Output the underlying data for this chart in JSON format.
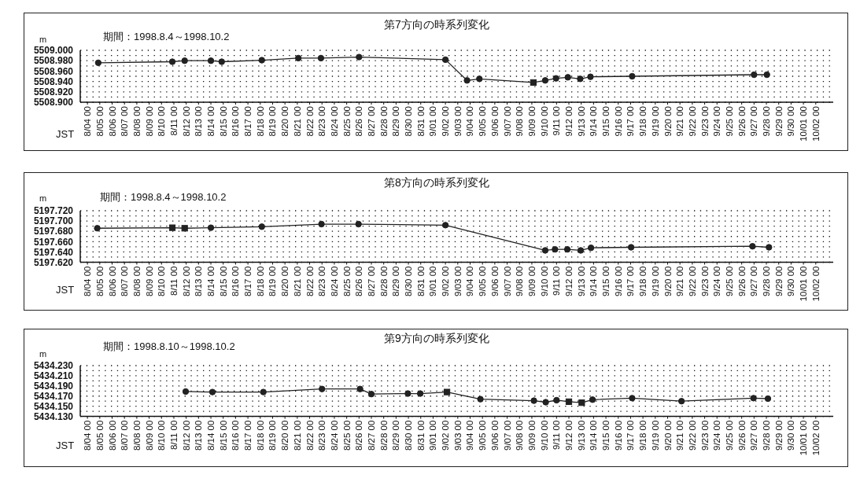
{
  "chart_data": [
    {
      "type": "line",
      "title": "第7方向の時系列変化",
      "subtitle": "期間：1998.8.4～1998.10.2",
      "xlabel": "JST",
      "ylabel": "m",
      "xlim": [
        "1998-08-03T10:00",
        "1998-10-03T10:00"
      ],
      "xticks": [
        {
          "value": "1998-08-04",
          "label": "8/04 00"
        },
        {
          "value": "1998-08-05",
          "label": "8/05 00"
        },
        {
          "value": "1998-08-06",
          "label": "8/06 00"
        },
        {
          "value": "1998-08-07",
          "label": "8/07 00"
        },
        {
          "value": "1998-08-08",
          "label": "8/08 00"
        },
        {
          "value": "1998-08-09",
          "label": "8/09 00"
        },
        {
          "value": "1998-08-10",
          "label": "8/10 00"
        },
        {
          "value": "1998-08-11",
          "label": "8/11 00"
        },
        {
          "value": "1998-08-12",
          "label": "8/12 00"
        },
        {
          "value": "1998-08-13",
          "label": "8/13 00"
        },
        {
          "value": "1998-08-14",
          "label": "8/14 00"
        },
        {
          "value": "1998-08-15",
          "label": "8/15 00"
        },
        {
          "value": "1998-08-16",
          "label": "8/16 00"
        },
        {
          "value": "1998-08-17",
          "label": "8/17 00"
        },
        {
          "value": "1998-08-18",
          "label": "8/18 00"
        },
        {
          "value": "1998-08-19",
          "label": "8/19 00"
        },
        {
          "value": "1998-08-20",
          "label": "8/20 00"
        },
        {
          "value": "1998-08-21",
          "label": "8/21 00"
        },
        {
          "value": "1998-08-22",
          "label": "8/22 00"
        },
        {
          "value": "1998-08-23",
          "label": "8/23 00"
        },
        {
          "value": "1998-08-24",
          "label": "8/24 00"
        },
        {
          "value": "1998-08-25",
          "label": "8/25 00"
        },
        {
          "value": "1998-08-26",
          "label": "8/26 00"
        },
        {
          "value": "1998-08-27",
          "label": "8/27 00"
        },
        {
          "value": "1998-08-28",
          "label": "8/28 00"
        },
        {
          "value": "1998-08-29",
          "label": "8/29 00"
        },
        {
          "value": "1998-08-30",
          "label": "8/30 00"
        },
        {
          "value": "1998-08-31",
          "label": "8/31 00"
        },
        {
          "value": "1998-09-01",
          "label": "9/01 00"
        },
        {
          "value": "1998-09-02",
          "label": "9/02 00"
        },
        {
          "value": "1998-09-03",
          "label": "9/03 00"
        },
        {
          "value": "1998-09-04",
          "label": "9/04 00"
        },
        {
          "value": "1998-09-05",
          "label": "9/05 00"
        },
        {
          "value": "1998-09-06",
          "label": "9/06 00"
        },
        {
          "value": "1998-09-07",
          "label": "9/07 00"
        },
        {
          "value": "1998-09-08",
          "label": "9/08 00"
        },
        {
          "value": "1998-09-09",
          "label": "9/09 00"
        },
        {
          "value": "1998-09-10",
          "label": "9/10 00"
        },
        {
          "value": "1998-09-11",
          "label": "9/11 00"
        },
        {
          "value": "1998-09-12",
          "label": "9/12 00"
        },
        {
          "value": "1998-09-13",
          "label": "9/13 00"
        },
        {
          "value": "1998-09-14",
          "label": "9/14 00"
        },
        {
          "value": "1998-09-15",
          "label": "9/15 00"
        },
        {
          "value": "1998-09-16",
          "label": "9/16 00"
        },
        {
          "value": "1998-09-17",
          "label": "9/17 00"
        },
        {
          "value": "1998-09-18",
          "label": "9/18 00"
        },
        {
          "value": "1998-09-19",
          "label": "9/19 00"
        },
        {
          "value": "1998-09-20",
          "label": "9/20 00"
        },
        {
          "value": "1998-09-21",
          "label": "9/21 00"
        },
        {
          "value": "1998-09-22",
          "label": "9/22 00"
        },
        {
          "value": "1998-09-23",
          "label": "9/23 00"
        },
        {
          "value": "1998-09-24",
          "label": "9/24 00"
        },
        {
          "value": "1998-09-25",
          "label": "9/25 00"
        },
        {
          "value": "1998-09-26",
          "label": "9/26 00"
        },
        {
          "value": "1998-09-27",
          "label": "9/27 00"
        },
        {
          "value": "1998-09-28",
          "label": "9/28 00"
        },
        {
          "value": "1998-09-29",
          "label": "9/29 00"
        },
        {
          "value": "1998-09-30",
          "label": "9/30 00"
        },
        {
          "value": "1998-10-01",
          "label": "10/01 00"
        },
        {
          "value": "1998-10-02",
          "label": "10/02 00"
        }
      ],
      "ylim": [
        5508.9,
        5509.0
      ],
      "yticks": [
        {
          "value": 5508.9,
          "label": "5508.900"
        },
        {
          "value": 5508.91,
          "label": null
        },
        {
          "value": 5508.92,
          "label": "5508.920"
        },
        {
          "value": 5508.93,
          "label": null
        },
        {
          "value": 5508.94,
          "label": "5508.940"
        },
        {
          "value": 5508.95,
          "label": null
        },
        {
          "value": 5508.96,
          "label": "5508.960"
        },
        {
          "value": 5508.97,
          "label": null
        },
        {
          "value": 5508.98,
          "label": "5508.980"
        },
        {
          "value": 5508.99,
          "label": null
        },
        {
          "value": 5509.0,
          "label": "5509.000"
        }
      ],
      "grid": "y",
      "series": [
        {
          "type": "line",
          "color": "#222222",
          "marker": "none",
          "x": [
            "1998-08-04T21:00",
            "1998-08-10T21:00",
            "1998-08-11T21:00",
            "1998-08-14T00:00",
            "1998-08-14T21:00",
            "1998-08-18T03:00",
            "1998-08-21T02:00",
            "1998-08-22T22:00",
            "1998-08-26T00:00",
            "1998-09-02T00:00",
            "1998-09-03T18:00",
            "1998-09-04T18:00",
            "1998-09-09T03:00",
            "1998-09-10T02:00",
            "1998-09-10T23:00",
            "1998-09-11T22:00",
            "1998-09-12T22:00",
            "1998-09-13T18:00",
            "1998-09-17T03:00",
            "1998-09-27T00:00",
            "1998-09-28T01:00"
          ],
          "values": [
            5508.976,
            5508.978,
            5508.98,
            5508.98,
            5508.978,
            5508.981,
            5508.985,
            5508.985,
            5508.987,
            5508.982,
            5508.942,
            5508.945,
            5508.938,
            5508.942,
            5508.946,
            5508.948,
            5508.945,
            5508.949,
            5508.95,
            5508.953,
            5508.953
          ]
        },
        {
          "type": "scatter",
          "color": "#222222",
          "marker": "circle",
          "x": [
            "1998-08-04T21:00",
            "1998-08-10T21:00",
            "1998-08-11T21:00",
            "1998-08-14T00:00",
            "1998-08-14T21:00",
            "1998-08-18T03:00",
            "1998-08-21T02:00",
            "1998-08-22T22:00",
            "1998-08-26T00:00",
            "1998-09-02T00:00",
            "1998-09-03T18:00",
            "1998-09-04T18:00",
            "1998-09-10T02:00",
            "1998-09-10T23:00",
            "1998-09-11T22:00",
            "1998-09-12T22:00",
            "1998-09-13T18:00",
            "1998-09-17T03:00",
            "1998-09-27T00:00",
            "1998-09-28T01:00"
          ],
          "values": [
            5508.976,
            5508.978,
            5508.98,
            5508.98,
            5508.978,
            5508.981,
            5508.985,
            5508.985,
            5508.987,
            5508.982,
            5508.942,
            5508.945,
            5508.942,
            5508.946,
            5508.948,
            5508.945,
            5508.949,
            5508.95,
            5508.953,
            5508.953
          ]
        },
        {
          "type": "scatter",
          "color": "#222222",
          "marker": "square",
          "x": [
            "1998-09-09T03:00"
          ],
          "values": [
            5508.938
          ]
        }
      ]
    },
    {
      "type": "line",
      "title": "第8方向の時系列変化",
      "subtitle": "期間：1998.8.4～1998.10.2",
      "xlabel": "JST",
      "ylabel": "m",
      "xlim": [
        "1998-08-03T10:00",
        "1998-10-03T10:00"
      ],
      "xticks": [
        {
          "value": "1998-08-04",
          "label": "8/04 00"
        },
        {
          "value": "1998-08-05",
          "label": "8/05 00"
        },
        {
          "value": "1998-08-06",
          "label": "8/06 00"
        },
        {
          "value": "1998-08-07",
          "label": "8/07 00"
        },
        {
          "value": "1998-08-08",
          "label": "8/08 00"
        },
        {
          "value": "1998-08-09",
          "label": "8/09 00"
        },
        {
          "value": "1998-08-10",
          "label": "8/10 00"
        },
        {
          "value": "1998-08-11",
          "label": "8/11 00"
        },
        {
          "value": "1998-08-12",
          "label": "8/12 00"
        },
        {
          "value": "1998-08-13",
          "label": "8/13 00"
        },
        {
          "value": "1998-08-14",
          "label": "8/14 00"
        },
        {
          "value": "1998-08-15",
          "label": "8/15 00"
        },
        {
          "value": "1998-08-16",
          "label": "8/16 00"
        },
        {
          "value": "1998-08-17",
          "label": "8/17 00"
        },
        {
          "value": "1998-08-18",
          "label": "8/18 00"
        },
        {
          "value": "1998-08-19",
          "label": "8/19 00"
        },
        {
          "value": "1998-08-20",
          "label": "8/20 00"
        },
        {
          "value": "1998-08-21",
          "label": "8/21 00"
        },
        {
          "value": "1998-08-22",
          "label": "8/22 00"
        },
        {
          "value": "1998-08-23",
          "label": "8/23 00"
        },
        {
          "value": "1998-08-24",
          "label": "8/24 00"
        },
        {
          "value": "1998-08-25",
          "label": "8/25 00"
        },
        {
          "value": "1998-08-26",
          "label": "8/26 00"
        },
        {
          "value": "1998-08-27",
          "label": "8/27 00"
        },
        {
          "value": "1998-08-28",
          "label": "8/28 00"
        },
        {
          "value": "1998-08-29",
          "label": "8/29 00"
        },
        {
          "value": "1998-08-30",
          "label": "8/30 00"
        },
        {
          "value": "1998-08-31",
          "label": "8/31 00"
        },
        {
          "value": "1998-09-01",
          "label": "9/01 00"
        },
        {
          "value": "1998-09-02",
          "label": "9/02 00"
        },
        {
          "value": "1998-09-03",
          "label": "9/03 00"
        },
        {
          "value": "1998-09-04",
          "label": "9/04 00"
        },
        {
          "value": "1998-09-05",
          "label": "9/05 00"
        },
        {
          "value": "1998-09-06",
          "label": "9/06 00"
        },
        {
          "value": "1998-09-07",
          "label": "9/07 00"
        },
        {
          "value": "1998-09-08",
          "label": "9/08 00"
        },
        {
          "value": "1998-09-09",
          "label": "9/09 00"
        },
        {
          "value": "1998-09-10",
          "label": "9/10 00"
        },
        {
          "value": "1998-09-11",
          "label": "9/11 00"
        },
        {
          "value": "1998-09-12",
          "label": "9/12 00"
        },
        {
          "value": "1998-09-13",
          "label": "9/13 00"
        },
        {
          "value": "1998-09-14",
          "label": "9/14 00"
        },
        {
          "value": "1998-09-15",
          "label": "9/15 00"
        },
        {
          "value": "1998-09-16",
          "label": "9/16 00"
        },
        {
          "value": "1998-09-17",
          "label": "9/17 00"
        },
        {
          "value": "1998-09-18",
          "label": "9/18 00"
        },
        {
          "value": "1998-09-19",
          "label": "9/19 00"
        },
        {
          "value": "1998-09-20",
          "label": "9/20 00"
        },
        {
          "value": "1998-09-21",
          "label": "9/21 00"
        },
        {
          "value": "1998-09-22",
          "label": "9/22 00"
        },
        {
          "value": "1998-09-23",
          "label": "9/23 00"
        },
        {
          "value": "1998-09-24",
          "label": "9/24 00"
        },
        {
          "value": "1998-09-25",
          "label": "9/25 00"
        },
        {
          "value": "1998-09-26",
          "label": "9/26 00"
        },
        {
          "value": "1998-09-27",
          "label": "9/27 00"
        },
        {
          "value": "1998-09-28",
          "label": "9/28 00"
        },
        {
          "value": "1998-09-29",
          "label": "9/29 00"
        },
        {
          "value": "1998-09-30",
          "label": "9/30 00"
        },
        {
          "value": "1998-10-01",
          "label": "10/01 00"
        },
        {
          "value": "1998-10-02",
          "label": "10/02 00"
        }
      ],
      "ylim": [
        5197.62,
        5197.72
      ],
      "yticks": [
        {
          "value": 5197.62,
          "label": "5197.620"
        },
        {
          "value": 5197.63,
          "label": null
        },
        {
          "value": 5197.64,
          "label": "5197.640"
        },
        {
          "value": 5197.65,
          "label": null
        },
        {
          "value": 5197.66,
          "label": "5197.660"
        },
        {
          "value": 5197.67,
          "label": null
        },
        {
          "value": 5197.68,
          "label": "5197.680"
        },
        {
          "value": 5197.69,
          "label": null
        },
        {
          "value": 5197.7,
          "label": "5197.700"
        },
        {
          "value": 5197.71,
          "label": null
        },
        {
          "value": 5197.72,
          "label": "5197.720"
        }
      ],
      "grid": "y",
      "series": [
        {
          "type": "line",
          "color": "#222222",
          "marker": "none",
          "x": [
            "1998-08-04T19:00",
            "1998-08-10T21:00",
            "1998-08-11T21:00",
            "1998-08-14T00:00",
            "1998-08-18T03:00",
            "1998-08-22T23:00",
            "1998-08-25T23:00",
            "1998-09-02T00:00",
            "1998-09-10T02:00",
            "1998-09-10T21:00",
            "1998-09-11T21:00",
            "1998-09-12T23:00",
            "1998-09-13T19:00",
            "1998-09-17T01:00",
            "1998-09-26T21:00",
            "1998-09-28T05:00"
          ],
          "values": [
            5197.686,
            5197.687,
            5197.686,
            5197.687,
            5197.689,
            5197.694,
            5197.694,
            5197.692,
            5197.643,
            5197.645,
            5197.645,
            5197.643,
            5197.648,
            5197.649,
            5197.651,
            5197.649
          ]
        },
        {
          "type": "scatter",
          "color": "#222222",
          "marker": "circle",
          "x": [
            "1998-08-04T19:00",
            "1998-08-14T00:00",
            "1998-08-18T03:00",
            "1998-08-22T23:00",
            "1998-08-25T23:00",
            "1998-09-02T00:00",
            "1998-09-10T02:00",
            "1998-09-10T21:00",
            "1998-09-11T21:00",
            "1998-09-12T23:00",
            "1998-09-13T19:00",
            "1998-09-17T01:00",
            "1998-09-26T21:00",
            "1998-09-28T05:00"
          ],
          "values": [
            5197.686,
            5197.687,
            5197.689,
            5197.694,
            5197.694,
            5197.692,
            5197.643,
            5197.645,
            5197.645,
            5197.643,
            5197.648,
            5197.649,
            5197.651,
            5197.649
          ]
        },
        {
          "type": "scatter",
          "color": "#222222",
          "marker": "square",
          "x": [
            "1998-08-10T21:00",
            "1998-08-11T21:00"
          ],
          "values": [
            5197.687,
            5197.686
          ]
        }
      ]
    },
    {
      "type": "line",
      "title": "第9方向の時系列変化",
      "subtitle": "期間：1998.8.10～1998.10.2",
      "xlabel": "JST",
      "ylabel": "m",
      "xlim": [
        "1998-08-03T10:00",
        "1998-10-03T10:00"
      ],
      "xticks": [
        {
          "value": "1998-08-04",
          "label": "8/04 00"
        },
        {
          "value": "1998-08-05",
          "label": "8/05 00"
        },
        {
          "value": "1998-08-06",
          "label": "8/06 00"
        },
        {
          "value": "1998-08-07",
          "label": "8/07 00"
        },
        {
          "value": "1998-08-08",
          "label": "8/08 00"
        },
        {
          "value": "1998-08-09",
          "label": "8/09 00"
        },
        {
          "value": "1998-08-10",
          "label": "8/10 00"
        },
        {
          "value": "1998-08-11",
          "label": "8/11 00"
        },
        {
          "value": "1998-08-12",
          "label": "8/12 00"
        },
        {
          "value": "1998-08-13",
          "label": "8/13 00"
        },
        {
          "value": "1998-08-14",
          "label": "8/14 00"
        },
        {
          "value": "1998-08-15",
          "label": "8/15 00"
        },
        {
          "value": "1998-08-16",
          "label": "8/16 00"
        },
        {
          "value": "1998-08-17",
          "label": "8/17 00"
        },
        {
          "value": "1998-08-18",
          "label": "8/18 00"
        },
        {
          "value": "1998-08-19",
          "label": "8/19 00"
        },
        {
          "value": "1998-08-20",
          "label": "8/20 00"
        },
        {
          "value": "1998-08-21",
          "label": "8/21 00"
        },
        {
          "value": "1998-08-22",
          "label": "8/22 00"
        },
        {
          "value": "1998-08-23",
          "label": "8/23 00"
        },
        {
          "value": "1998-08-24",
          "label": "8/24 00"
        },
        {
          "value": "1998-08-25",
          "label": "8/25 00"
        },
        {
          "value": "1998-08-26",
          "label": "8/26 00"
        },
        {
          "value": "1998-08-27",
          "label": "8/27 00"
        },
        {
          "value": "1998-08-28",
          "label": "8/28 00"
        },
        {
          "value": "1998-08-29",
          "label": "8/29 00"
        },
        {
          "value": "1998-08-30",
          "label": "8/30 00"
        },
        {
          "value": "1998-08-31",
          "label": "8/31 00"
        },
        {
          "value": "1998-09-01",
          "label": "9/01 00"
        },
        {
          "value": "1998-09-02",
          "label": "9/02 00"
        },
        {
          "value": "1998-09-03",
          "label": "9/03 00"
        },
        {
          "value": "1998-09-04",
          "label": "9/04 00"
        },
        {
          "value": "1998-09-05",
          "label": "9/05 00"
        },
        {
          "value": "1998-09-06",
          "label": "9/06 00"
        },
        {
          "value": "1998-09-07",
          "label": "9/07 00"
        },
        {
          "value": "1998-09-08",
          "label": "9/08 00"
        },
        {
          "value": "1998-09-09",
          "label": "9/09 00"
        },
        {
          "value": "1998-09-10",
          "label": "9/10 00"
        },
        {
          "value": "1998-09-11",
          "label": "9/11 00"
        },
        {
          "value": "1998-09-12",
          "label": "9/12 00"
        },
        {
          "value": "1998-09-13",
          "label": "9/13 00"
        },
        {
          "value": "1998-09-14",
          "label": "9/14 00"
        },
        {
          "value": "1998-09-15",
          "label": "9/15 00"
        },
        {
          "value": "1998-09-16",
          "label": "9/16 00"
        },
        {
          "value": "1998-09-17",
          "label": "9/17 00"
        },
        {
          "value": "1998-09-18",
          "label": "9/18 00"
        },
        {
          "value": "1998-09-19",
          "label": "9/19 00"
        },
        {
          "value": "1998-09-20",
          "label": "9/20 00"
        },
        {
          "value": "1998-09-21",
          "label": "9/21 00"
        },
        {
          "value": "1998-09-22",
          "label": "9/22 00"
        },
        {
          "value": "1998-09-23",
          "label": "9/23 00"
        },
        {
          "value": "1998-09-24",
          "label": "9/24 00"
        },
        {
          "value": "1998-09-25",
          "label": "9/25 00"
        },
        {
          "value": "1998-09-26",
          "label": "9/26 00"
        },
        {
          "value": "1998-09-27",
          "label": "9/27 00"
        },
        {
          "value": "1998-09-28",
          "label": "9/28 00"
        },
        {
          "value": "1998-09-29",
          "label": "9/29 00"
        },
        {
          "value": "1998-09-30",
          "label": "9/30 00"
        },
        {
          "value": "1998-10-01",
          "label": "10/01 00"
        },
        {
          "value": "1998-10-02",
          "label": "10/02 00"
        }
      ],
      "ylim": [
        5434.13,
        5434.23
      ],
      "yticks": [
        {
          "value": 5434.13,
          "label": "5434.130"
        },
        {
          "value": 5434.14,
          "label": null
        },
        {
          "value": 5434.15,
          "label": "5434.150"
        },
        {
          "value": 5434.16,
          "label": null
        },
        {
          "value": 5434.17,
          "label": "5434.170"
        },
        {
          "value": 5434.18,
          "label": null
        },
        {
          "value": 5434.19,
          "label": "5434.190"
        },
        {
          "value": 5434.2,
          "label": null
        },
        {
          "value": 5434.21,
          "label": "5434.210"
        },
        {
          "value": 5434.22,
          "label": null
        },
        {
          "value": 5434.23,
          "label": "5434.230"
        }
      ],
      "grid": "y",
      "series": [
        {
          "type": "line",
          "color": "#222222",
          "marker": "none",
          "x": [
            "1998-08-11T23:00",
            "1998-08-14T03:00",
            "1998-08-18T06:00",
            "1998-08-23T00:00",
            "1998-08-26T02:00",
            "1998-08-27T00:00",
            "1998-08-29T23:00",
            "1998-08-30T23:00",
            "1998-09-02T03:00",
            "1998-09-04T20:00",
            "1998-09-09T04:00",
            "1998-09-10T03:00",
            "1998-09-11T00:00",
            "1998-09-12T00:00",
            "1998-09-13T01:00",
            "1998-09-13T22:00",
            "1998-09-17T03:00",
            "1998-09-21T03:00",
            "1998-09-26T23:00",
            "1998-09-28T03:00"
          ],
          "values": [
            5434.179,
            5434.178,
            5434.178,
            5434.184,
            5434.184,
            5434.174,
            5434.175,
            5434.175,
            5434.178,
            5434.164,
            5434.161,
            5434.158,
            5434.162,
            5434.159,
            5434.157,
            5434.163,
            5434.166,
            5434.16,
            5434.166,
            5434.165
          ]
        },
        {
          "type": "scatter",
          "color": "#222222",
          "marker": "circle",
          "x": [
            "1998-08-11T23:00",
            "1998-08-14T03:00",
            "1998-08-18T06:00",
            "1998-08-23T00:00",
            "1998-08-26T02:00",
            "1998-08-27T00:00",
            "1998-08-29T23:00",
            "1998-08-30T23:00",
            "1998-09-04T20:00",
            "1998-09-09T04:00",
            "1998-09-10T03:00",
            "1998-09-11T00:00",
            "1998-09-13T22:00",
            "1998-09-17T03:00",
            "1998-09-21T03:00",
            "1998-09-26T23:00",
            "1998-09-28T03:00"
          ],
          "values": [
            5434.179,
            5434.178,
            5434.178,
            5434.184,
            5434.184,
            5434.174,
            5434.175,
            5434.175,
            5434.164,
            5434.161,
            5434.158,
            5434.162,
            5434.163,
            5434.166,
            5434.16,
            5434.166,
            5434.165
          ]
        },
        {
          "type": "scatter",
          "color": "#222222",
          "marker": "square",
          "x": [
            "1998-09-02T03:00",
            "1998-09-12T00:00",
            "1998-09-13T01:00"
          ],
          "values": [
            5434.178,
            5434.159,
            5434.157
          ]
        }
      ]
    }
  ]
}
